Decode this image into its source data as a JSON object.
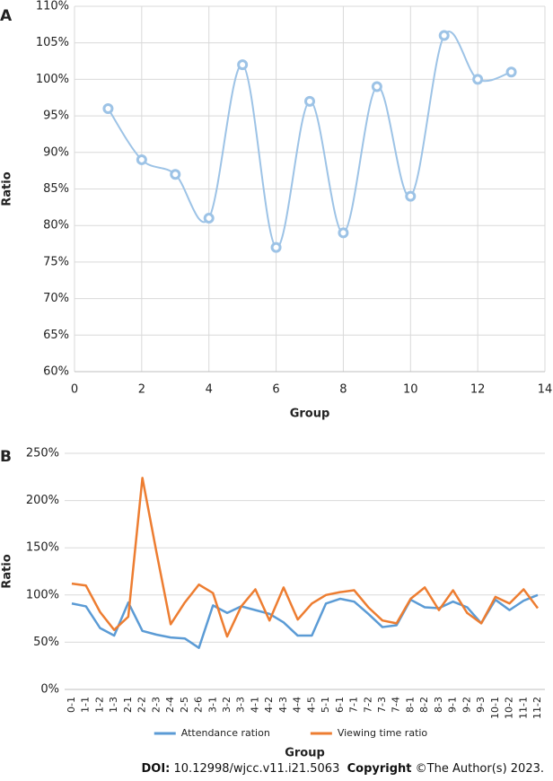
{
  "chart_data": [
    {
      "panel": "A",
      "type": "line",
      "smooth": true,
      "markers": true,
      "x_label": "Group",
      "y_label": "Ratio",
      "x": [
        1,
        2,
        3,
        4,
        5,
        6,
        7,
        8,
        9,
        10,
        11,
        12,
        13
      ],
      "series": [
        {
          "color": "#9dc3e6",
          "values": [
            96,
            89,
            87,
            81,
            102,
            77,
            97,
            79,
            99,
            84,
            106,
            100,
            101
          ]
        }
      ],
      "xlim": [
        0,
        14
      ],
      "xticks": [
        0,
        2,
        4,
        6,
        8,
        10,
        12,
        14
      ],
      "ylim": [
        60,
        110
      ],
      "yticks": [
        {
          "value": 60,
          "label": "60%"
        },
        {
          "value": 65,
          "label": "65%"
        },
        {
          "value": 70,
          "label": "70%"
        },
        {
          "value": 75,
          "label": "75%"
        },
        {
          "value": 80,
          "label": "80%"
        },
        {
          "value": 85,
          "label": "85%"
        },
        {
          "value": 90,
          "label": "90%"
        },
        {
          "value": 95,
          "label": "95%"
        },
        {
          "value": 100,
          "label": "100%"
        },
        {
          "value": 105,
          "label": "105%"
        },
        {
          "value": 110,
          "label": "110%"
        }
      ],
      "grid": "both"
    },
    {
      "panel": "B",
      "type": "line",
      "x_label": "Group",
      "y_label": "Ratio",
      "categories": [
        "0-1",
        "1-1",
        "1-2",
        "1-3",
        "2-1",
        "2-2",
        "2-3",
        "2-4",
        "2-5",
        "2-6",
        "3-1",
        "3-2",
        "3-3",
        "4-1",
        "4-2",
        "4-3",
        "4-4",
        "4-5",
        "5-1",
        "6-1",
        "7-1",
        "7-2",
        "7-3",
        "7-4",
        "8-1",
        "8-2",
        "8-3",
        "9-1",
        "9-2",
        "9-3",
        "10-1",
        "10-2",
        "11-1",
        "11-2"
      ],
      "series": [
        {
          "name": "Attendance ration",
          "color": "#5b9bd5",
          "values": [
            91,
            88,
            65,
            57,
            92,
            62,
            58,
            55,
            54,
            44,
            89,
            81,
            88,
            84,
            80,
            71,
            57,
            57,
            91,
            96,
            93,
            80,
            66,
            68,
            95,
            87,
            86,
            93,
            87,
            70,
            95,
            84,
            94,
            100
          ]
        },
        {
          "name": "Viewing time ratio",
          "color": "#ed7d31",
          "values": [
            112,
            110,
            82,
            63,
            77,
            224,
            145,
            69,
            92,
            111,
            102,
            56,
            88,
            106,
            73,
            108,
            74,
            91,
            100,
            103,
            105,
            87,
            73,
            70,
            96,
            108,
            84,
            105,
            81,
            70,
            98,
            91,
            106,
            86
          ]
        }
      ],
      "ylim": [
        0,
        250
      ],
      "yticks": [
        {
          "value": 0,
          "label": "0%"
        },
        {
          "value": 50,
          "label": "50%"
        },
        {
          "value": 100,
          "label": "100%"
        },
        {
          "value": 150,
          "label": "150%"
        },
        {
          "value": 200,
          "label": "200%"
        },
        {
          "value": 250,
          "label": "250%"
        }
      ],
      "grid": "y",
      "legend": "bottom"
    }
  ],
  "footer": {
    "doi_label": "DOI:",
    "doi": "10.12998/wjcc.v11.i21.5063",
    "copyright_label": "Copyright",
    "copyright": "©The Author(s) 2023."
  }
}
